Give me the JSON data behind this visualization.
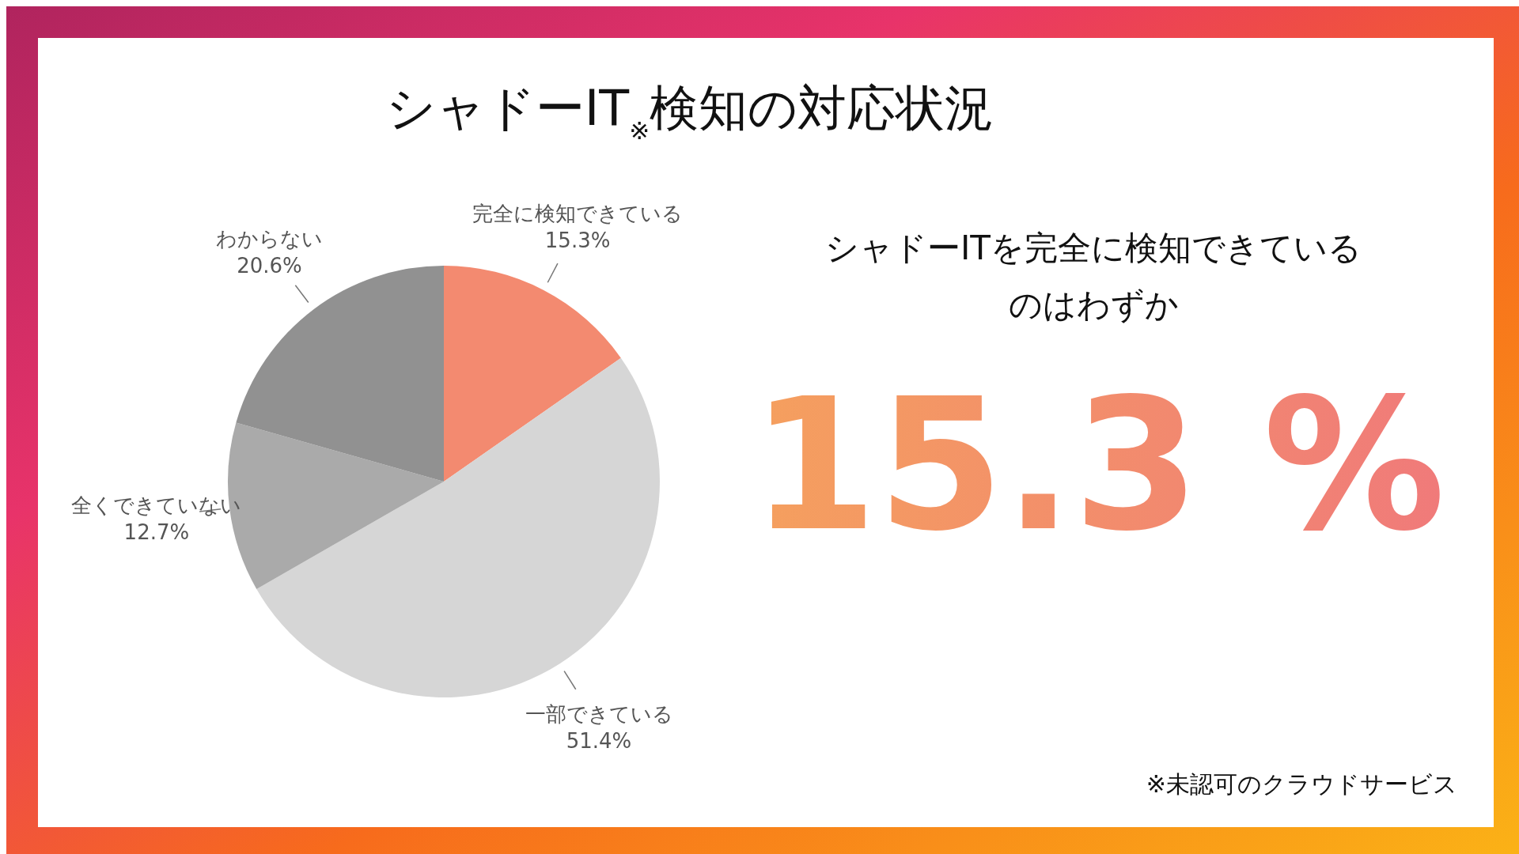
{
  "chart_data": {
    "type": "pie",
    "title": "シャドーIT$_{※}$検知の対応状況",
    "categories": [
      "完全に検知できている",
      "一部できている",
      "全くできていない",
      "わからない"
    ],
    "values": [
      15.3,
      51.4,
      12.7,
      20.6
    ],
    "colors": [
      "#f38a70",
      "#d6d6d6",
      "#aaaaaa",
      "#919191"
    ],
    "value_labels": [
      "15.3%",
      "51.4%",
      "12.7%",
      "20.6%"
    ],
    "annotations": [
      "シャドーITを完全に検知できている",
      "のはわずか",
      "15.3 %",
      "※未認可のクラウドサービス"
    ]
  }
}
